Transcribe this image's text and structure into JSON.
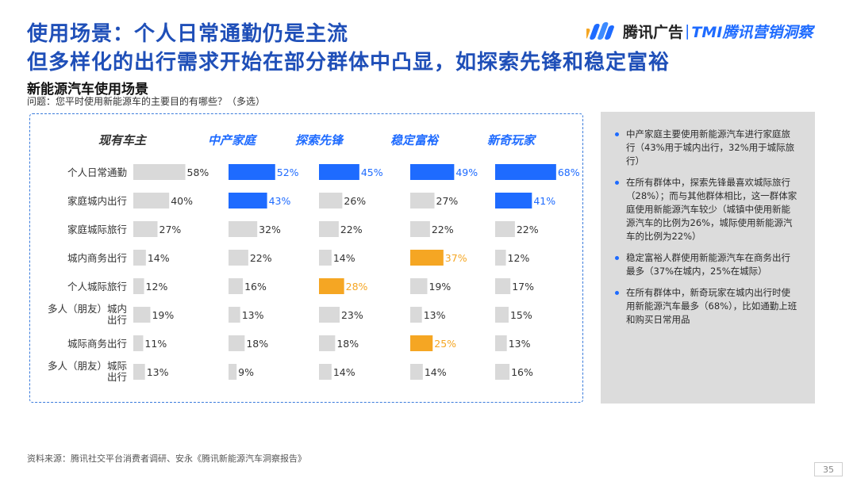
{
  "header": {
    "title_line1": "使用场景：个人日常通勤仍是主流",
    "title_line2": "但多样化的出行需求开始在部分群体中凸显，如探索先锋和稳定富裕",
    "logo_text": "腾讯广告",
    "logo_sep": "|",
    "logo_tmi": "TMI腾讯营销洞察"
  },
  "section": {
    "subtitle": "新能源汽车使用场景",
    "question": "问题：您平时使用新能源车的主要目的有哪些？（多选）"
  },
  "chart_data": {
    "type": "bar",
    "orientation": "horizontal",
    "categories": [
      "个人日常通勤",
      "家庭城内出行",
      "家庭城际旅行",
      "城内商务出行",
      "个人城际旅行",
      "多人（朋友）城内出行",
      "城际商务出行",
      "多人（朋友）城际出行"
    ],
    "category_lines": [
      [
        "个人日常通勤"
      ],
      [
        "家庭城内出行"
      ],
      [
        "家庭城际旅行"
      ],
      [
        "城内商务出行"
      ],
      [
        "个人城际旅行"
      ],
      [
        "多人（朋友）城内",
        "出行"
      ],
      [
        "城际商务出行"
      ],
      [
        "多人（朋友）城际",
        "出行"
      ]
    ],
    "value_suffix": "%",
    "xlim": [
      0,
      100
    ],
    "series": [
      {
        "name": "现有车主",
        "values": [
          58,
          40,
          27,
          14,
          12,
          19,
          11,
          13
        ],
        "highlight": [
          "none",
          "none",
          "none",
          "none",
          "none",
          "none",
          "none",
          "none"
        ]
      },
      {
        "name": "中产家庭",
        "values": [
          52,
          43,
          32,
          22,
          16,
          13,
          18,
          9
        ],
        "highlight": [
          "blue",
          "blue",
          "none",
          "none",
          "none",
          "none",
          "none",
          "none"
        ]
      },
      {
        "name": "探索先锋",
        "values": [
          45,
          26,
          22,
          14,
          28,
          23,
          18,
          14
        ],
        "highlight": [
          "blue",
          "none",
          "none",
          "none",
          "orange",
          "none",
          "none",
          "none"
        ]
      },
      {
        "name": "稳定富裕",
        "values": [
          49,
          27,
          22,
          37,
          19,
          13,
          25,
          14
        ],
        "highlight": [
          "blue",
          "none",
          "none",
          "orange",
          "none",
          "none",
          "orange",
          "none"
        ]
      },
      {
        "name": "新奇玩家",
        "values": [
          68,
          41,
          22,
          12,
          17,
          15,
          13,
          16
        ],
        "highlight": [
          "blue",
          "blue",
          "none",
          "none",
          "none",
          "none",
          "none",
          "none"
        ]
      }
    ],
    "colors": {
      "none": "#d9d9d9",
      "blue": "#1e6bff",
      "orange": "#f5a623",
      "text_default": "#333333",
      "text_blue": "#1e6bff",
      "text_orange": "#f5a623"
    }
  },
  "insights": [
    "中产家庭主要使用新能源汽车进行家庭旅行（43%用于城内出行，32%用于城际旅行）",
    "在所有群体中，探索先锋最喜欢城际旅行（28%）；而与其他群体相比，这一群体家庭使用新能源汽车较少（城镇中使用新能源汽车的比例为26%，城际使用新能源汽车的比例为22%）",
    "稳定富裕人群使用新能源汽车在商务出行最多（37%在城内，25%在城际）",
    "在所有群体中，新奇玩家在城内出行时使用新能源汽车最多（68%），比如通勤上班和购买日常用品"
  ],
  "footer": {
    "source": "资料来源：腾讯社交平台消费者调研、安永《腾讯新能源汽车洞察报告》",
    "page": "35"
  }
}
